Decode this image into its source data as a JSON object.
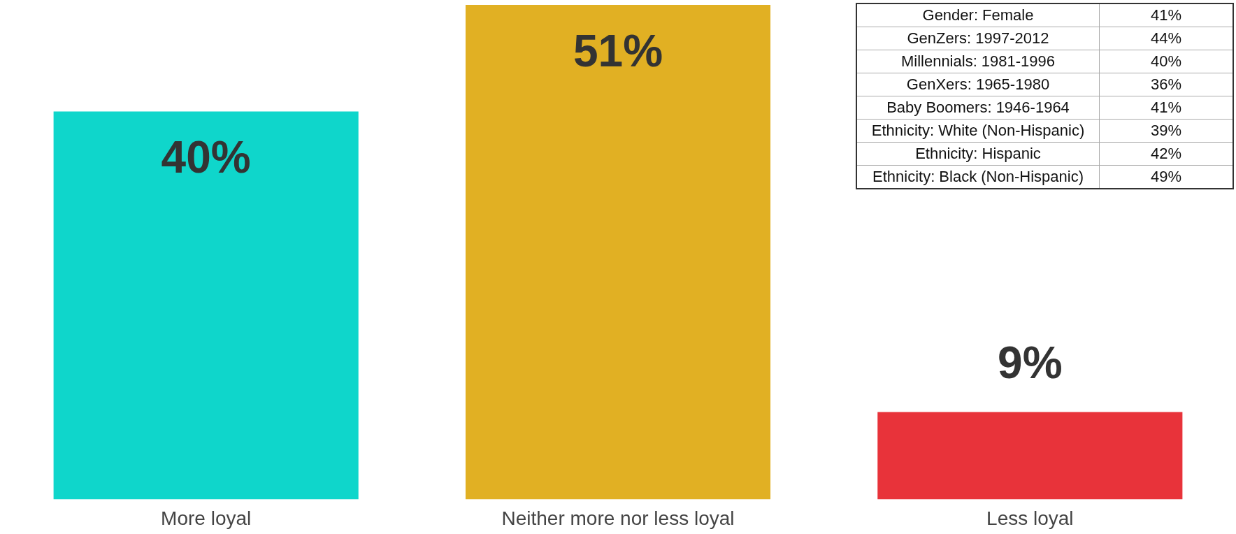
{
  "chart_data": [
    {
      "type": "bar",
      "categories": [
        "More loyal",
        "Neither more nor less loyal",
        "Less loyal"
      ],
      "values": [
        40,
        51,
        9
      ],
      "colors": [
        "#0fd6cb",
        "#e1b023",
        "#e8333a"
      ],
      "value_labels": [
        "40%",
        "51%",
        "9%"
      ]
    },
    {
      "type": "other",
      "categories": [
        "Gender: Female",
        "GenZers: 1997-2012",
        "Millennials: 1981-1996",
        "GenXers: 1965-1980",
        "Baby Boomers: 1946-1964",
        "Ethnicity: White (Non-Hispanic)",
        "Ethnicity: Hispanic",
        "Ethnicity: Black (Non-Hispanic)"
      ],
      "value_labels": [
        "41%",
        "44%",
        "40%",
        "36%",
        "41%",
        "39%",
        "42%",
        "49%"
      ]
    }
  ]
}
